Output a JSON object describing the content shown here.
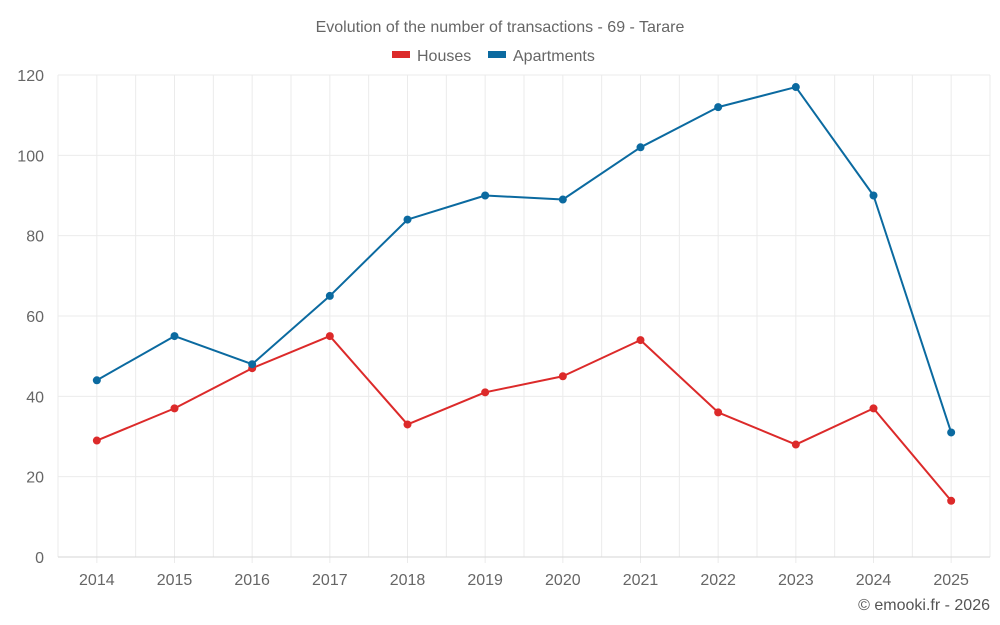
{
  "chart_data": {
    "type": "line",
    "title": "Evolution of the number of transactions - 69 - Tarare",
    "xlabel": "",
    "ylabel": "",
    "categories": [
      "2014",
      "2015",
      "2016",
      "2017",
      "2018",
      "2019",
      "2020",
      "2021",
      "2022",
      "2023",
      "2024",
      "2025"
    ],
    "series": [
      {
        "name": "Houses",
        "color": "#dc2a2a",
        "values": [
          29,
          37,
          47,
          55,
          33,
          41,
          45,
          54,
          36,
          28,
          37,
          14
        ]
      },
      {
        "name": "Apartments",
        "color": "#0b6aa0",
        "values": [
          44,
          55,
          48,
          65,
          84,
          90,
          89,
          102,
          112,
          117,
          90,
          31
        ]
      }
    ],
    "ylim": [
      0,
      120
    ],
    "yticks": [
      0,
      20,
      40,
      60,
      80,
      100,
      120
    ],
    "grid": true,
    "legend_position": "top-center",
    "credit": "© emooki.fr - 2026"
  }
}
